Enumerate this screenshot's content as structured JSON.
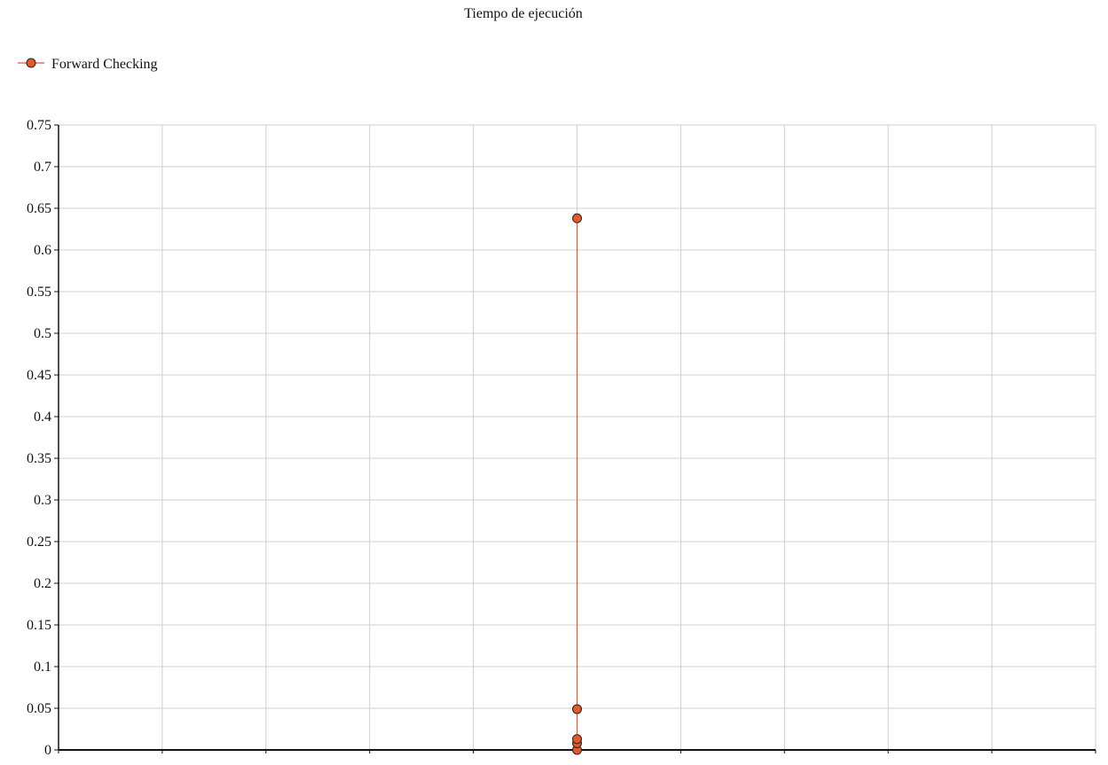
{
  "chart_data": {
    "type": "line",
    "title": "Tiempo de ejecución",
    "xlabel": "",
    "ylabel": "",
    "ylim": [
      0,
      0.75
    ],
    "yticks": [
      "0",
      "0.05",
      "0.1",
      "0.15",
      "0.2",
      "0.25",
      "0.3",
      "0.35",
      "0.4",
      "0.45",
      "0.5",
      "0.55",
      "0.6",
      "0.65",
      "0.7",
      "0.75"
    ],
    "x_gridlines": 10,
    "grid": true,
    "legend_position": "top-left",
    "series": [
      {
        "name": "Forward Checking",
        "color": "#e8572a",
        "marker": "circle",
        "points": [
          {
            "x": 5,
            "y": 0.0
          },
          {
            "x": 5,
            "y": 0.008
          },
          {
            "x": 5,
            "y": 0.013
          },
          {
            "x": 5,
            "y": 0.049
          },
          {
            "x": 5,
            "y": 0.638
          }
        ]
      }
    ]
  }
}
